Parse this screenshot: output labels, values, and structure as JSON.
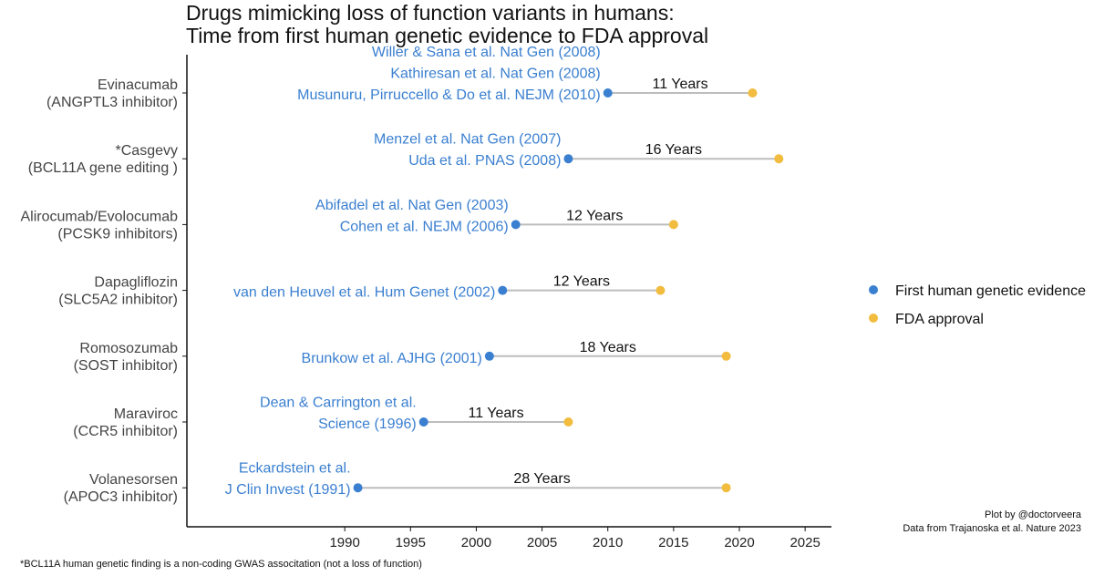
{
  "title_lines": [
    "Drugs mimicking loss of function variants in humans:",
    "Time from first human genetic evidence to FDA approval"
  ],
  "colors": {
    "genetic": "#3a7fd0",
    "fda": "#f2bc3f",
    "segment": "#bdbdbd",
    "axis": "#111111"
  },
  "chart_data": {
    "type": "dumbbell",
    "xlim": [
      1978,
      2027
    ],
    "xticks": [
      1990,
      1995,
      2000,
      2005,
      2010,
      2015,
      2020,
      2025
    ],
    "legend_position": "right",
    "legend": [
      {
        "label": "First human genetic evidence",
        "color": "#3a7fd0"
      },
      {
        "label": "FDA approval",
        "color": "#f2bc3f"
      }
    ],
    "rows": [
      {
        "drug": [
          "Evinacumab",
          "(ANGPTL3 inhibitor)"
        ],
        "refs": [
          "Willer & Sana et al. Nat Gen (2008)",
          "Kathiresan et al. Nat Gen (2008)",
          "Musunuru, Pirruccello & Do et al. NEJM (2010)"
        ],
        "start": 2010,
        "end": 2021,
        "years_label": "11 Years"
      },
      {
        "drug": [
          "*Casgevy",
          "(BCL11A gene editing )"
        ],
        "refs": [
          "Menzel et al. Nat Gen (2007)",
          "Uda et al. PNAS (2008)"
        ],
        "start": 2007,
        "end": 2023,
        "years_label": "16 Years"
      },
      {
        "drug": [
          "Alirocumab/Evolocumab",
          "(PCSK9 inhibitors)"
        ],
        "refs": [
          "Abifadel et al. Nat Gen (2003)",
          "Cohen et al. NEJM (2006)"
        ],
        "start": 2003,
        "end": 2015,
        "years_label": "12 Years"
      },
      {
        "drug": [
          "Dapagliflozin",
          "(SLC5A2 inhibitor)"
        ],
        "refs": [
          "van den Heuvel et al. Hum Genet (2002)"
        ],
        "start": 2002,
        "end": 2014,
        "years_label": "12 Years"
      },
      {
        "drug": [
          "Romosozumab",
          "(SOST inhibitor)"
        ],
        "refs": [
          "Brunkow et al. AJHG (2001)"
        ],
        "start": 2001,
        "end": 2019,
        "years_label": "18 Years"
      },
      {
        "drug": [
          "Maraviroc",
          "(CCR5 inhibitor)"
        ],
        "refs": [
          "Dean & Carrington et al.",
          "Science (1996)"
        ],
        "start": 1996,
        "end": 2007,
        "years_label": "11 Years"
      },
      {
        "drug": [
          "Volanesorsen",
          "(APOC3 inhibitor)"
        ],
        "refs": [
          "Eckardstein et al.",
          "J Clin Invest (1991)"
        ],
        "start": 1991,
        "end": 2019,
        "years_label": "28 Years"
      }
    ]
  },
  "credit_lines": [
    "Plot by @doctorveera",
    "Data from Trajanoska et al. Nature 2023"
  ],
  "footnote": "*BCL11A human genetic finding is a non-coding GWAS associtation (not a loss of function)"
}
